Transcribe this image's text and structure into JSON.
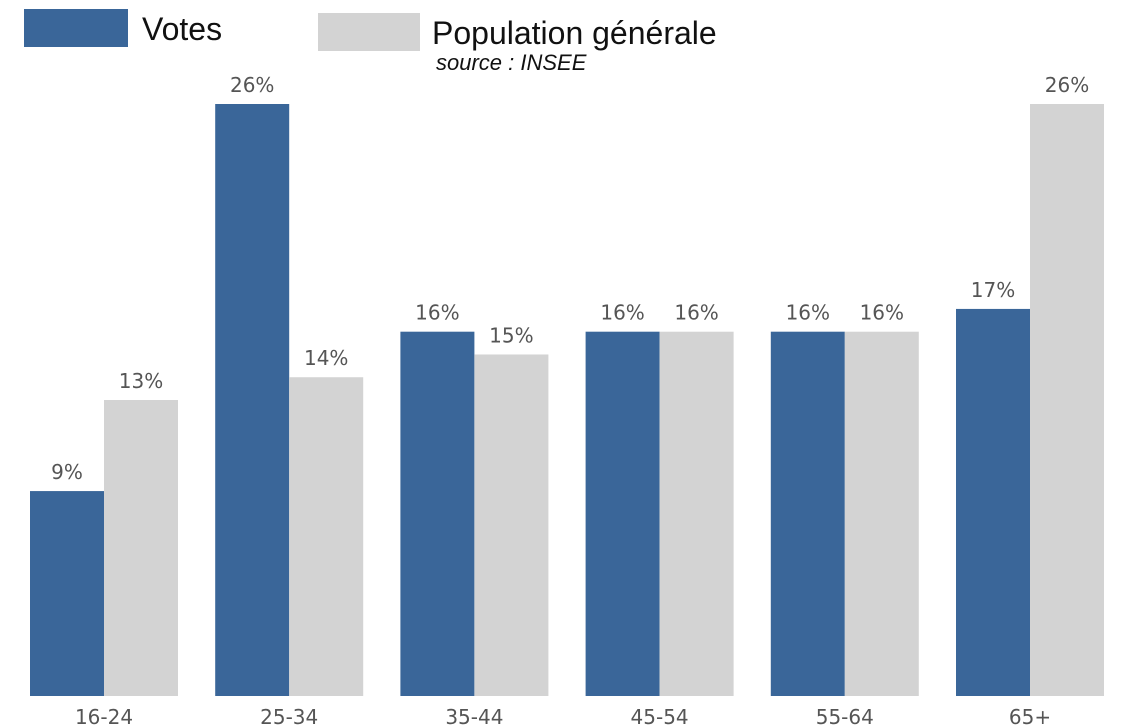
{
  "legend": {
    "items": [
      {
        "label": "Votes",
        "color": "#3a6699"
      },
      {
        "label": "Population générale",
        "color": "#d3d3d3"
      }
    ],
    "source_note": "source : INSEE"
  },
  "chart_data": {
    "type": "bar",
    "categories": [
      "16-24",
      "25-34",
      "35-44",
      "45-54",
      "55-64",
      "65+"
    ],
    "series": [
      {
        "name": "Votes",
        "color": "#3a6699",
        "values": [
          9,
          26,
          16,
          16,
          16,
          17
        ]
      },
      {
        "name": "Population générale",
        "color": "#d3d3d3",
        "values": [
          13,
          14,
          15,
          16,
          16,
          26
        ]
      }
    ],
    "value_suffix": "%",
    "ylim": [
      0,
      26
    ],
    "xlabel": "",
    "ylabel": "",
    "grid": false,
    "legend_position": "top-left"
  }
}
